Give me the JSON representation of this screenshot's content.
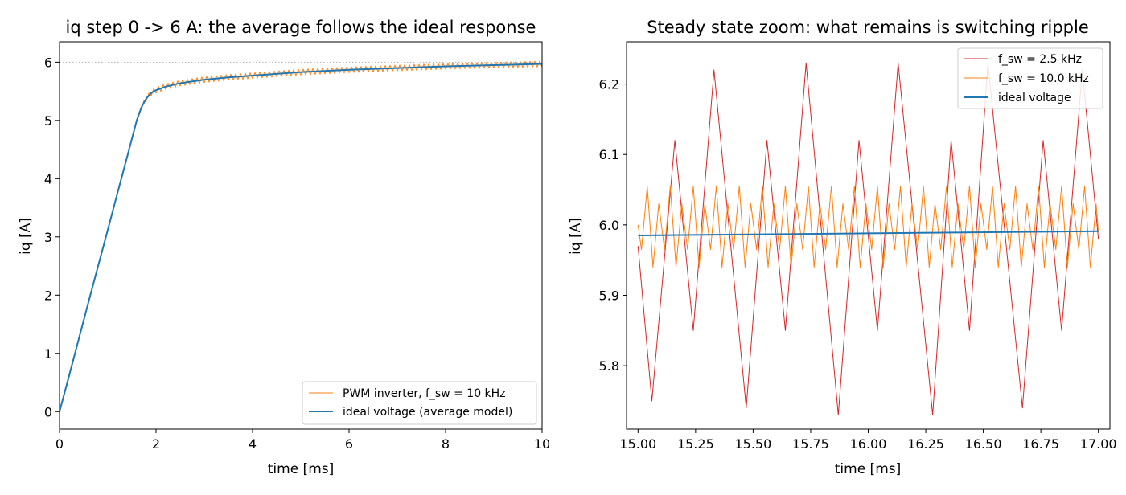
{
  "chart_data": [
    {
      "type": "line",
      "title": "iq step 0 -> 6 A: the average follows the ideal response",
      "xlabel": "time [ms]",
      "ylabel": "iq [A]",
      "xlim": [
        0,
        10
      ],
      "ylim": [
        -0.3,
        6.35
      ],
      "xticks": [
        "0",
        "2",
        "4",
        "6",
        "8",
        "10"
      ],
      "yticks": [
        "0",
        "1",
        "2",
        "3",
        "4",
        "5",
        "6"
      ],
      "grid": false,
      "legend_position": "lower-right",
      "reference_line": {
        "y": 6,
        "style": "dotted",
        "color": "#b0b0b0"
      },
      "series": [
        {
          "name": "PWM inverter, f_sw = 10 kHz",
          "color": "#ff7f0e",
          "model": "ideal response plus switching ripple",
          "ripple_amplitude": 0.05,
          "ripple_period_ms": 0.1
        },
        {
          "name": "ideal voltage (average model)",
          "color": "#1f77b4",
          "x": [
            0,
            0.2,
            0.4,
            0.6,
            0.8,
            1.0,
            1.2,
            1.4,
            1.6,
            1.7,
            1.8,
            1.9,
            2.0,
            2.2,
            2.5,
            3.0,
            3.5,
            4.0,
            5.0,
            6.0,
            7.0,
            8.0,
            9.0,
            10.0
          ],
          "y": [
            0,
            0.62,
            1.25,
            1.88,
            2.5,
            3.12,
            3.75,
            4.37,
            5.0,
            5.23,
            5.38,
            5.47,
            5.52,
            5.58,
            5.64,
            5.7,
            5.74,
            5.77,
            5.83,
            5.87,
            5.9,
            5.93,
            5.95,
            5.97
          ]
        }
      ]
    },
    {
      "type": "line",
      "title": "Steady state zoom: what remains is switching ripple",
      "xlabel": "time [ms]",
      "ylabel": "iq [A]",
      "xlim": [
        14.95,
        17.05
      ],
      "ylim": [
        5.71,
        6.26
      ],
      "xticks": [
        "15.00",
        "15.25",
        "15.50",
        "15.75",
        "16.00",
        "16.25",
        "16.50",
        "16.75",
        "17.00"
      ],
      "yticks": [
        "5.8",
        "5.9",
        "6.0",
        "6.1",
        "6.2"
      ],
      "grid": false,
      "legend_position": "upper-right",
      "series": [
        {
          "name": "f_sw = 2.5 kHz",
          "color": "#d62728",
          "x": [
            15.0,
            15.06,
            15.16,
            15.24,
            15.33,
            15.47,
            15.56,
            15.64,
            15.73,
            15.87,
            15.96,
            16.04,
            16.13,
            16.28,
            16.36,
            16.44,
            16.52,
            16.67,
            16.76,
            16.84,
            16.93,
            17.0
          ],
          "y": [
            5.97,
            5.75,
            6.12,
            5.85,
            6.22,
            5.74,
            6.12,
            5.85,
            6.23,
            5.73,
            6.12,
            5.85,
            6.23,
            5.73,
            6.12,
            5.85,
            6.23,
            5.74,
            6.12,
            5.85,
            6.22,
            5.98
          ]
        },
        {
          "name": "f_sw = 10.0 kHz",
          "color": "#ff7f0e",
          "x": [
            15.0,
            15.015,
            15.04,
            15.065,
            15.09,
            15.115,
            15.14,
            15.165,
            15.19,
            15.215,
            15.24,
            15.265,
            15.29,
            15.315,
            15.34,
            15.365,
            15.39,
            15.415,
            15.44,
            15.465,
            15.49,
            15.515,
            15.54,
            15.565,
            15.59,
            15.615,
            15.64,
            15.665,
            15.69,
            15.715,
            15.74,
            15.765,
            15.79,
            15.815,
            15.84,
            15.865,
            15.89,
            15.915,
            15.94,
            15.965,
            15.99,
            16.015,
            16.04,
            16.065,
            16.09,
            16.115,
            16.14,
            16.165,
            16.19,
            16.215,
            16.24,
            16.265,
            16.29,
            16.315,
            16.34,
            16.365,
            16.39,
            16.415,
            16.44,
            16.465,
            16.49,
            16.515,
            16.54,
            16.565,
            16.59,
            16.615,
            16.64,
            16.665,
            16.69,
            16.715,
            16.74,
            16.765,
            16.79,
            16.815,
            16.84,
            16.865,
            16.89,
            16.915,
            16.94,
            16.965,
            16.99,
            17.0
          ],
          "y": [
            6.0,
            5.965,
            6.055,
            5.94,
            6.03,
            5.965,
            6.055,
            5.94,
            6.03,
            5.965,
            6.055,
            5.94,
            6.03,
            5.965,
            6.055,
            5.94,
            6.03,
            5.965,
            6.055,
            5.94,
            6.03,
            5.965,
            6.055,
            5.94,
            6.03,
            5.965,
            6.055,
            5.94,
            6.03,
            5.965,
            6.055,
            5.94,
            6.03,
            5.965,
            6.055,
            5.94,
            6.03,
            5.965,
            6.055,
            5.94,
            6.03,
            5.965,
            6.055,
            5.94,
            6.03,
            5.965,
            6.055,
            5.94,
            6.03,
            5.965,
            6.055,
            5.94,
            6.03,
            5.965,
            6.055,
            5.94,
            6.03,
            5.965,
            6.055,
            5.94,
            6.03,
            5.965,
            6.055,
            5.94,
            6.03,
            5.965,
            6.055,
            5.94,
            6.03,
            5.965,
            6.055,
            5.94,
            6.03,
            5.965,
            6.055,
            5.94,
            6.03,
            5.965,
            6.055,
            5.94,
            6.03,
            5.99
          ]
        },
        {
          "name": "ideal voltage",
          "color": "#1f77b4",
          "x": [
            15.0,
            17.0
          ],
          "y": [
            5.985,
            5.991
          ]
        }
      ]
    }
  ]
}
